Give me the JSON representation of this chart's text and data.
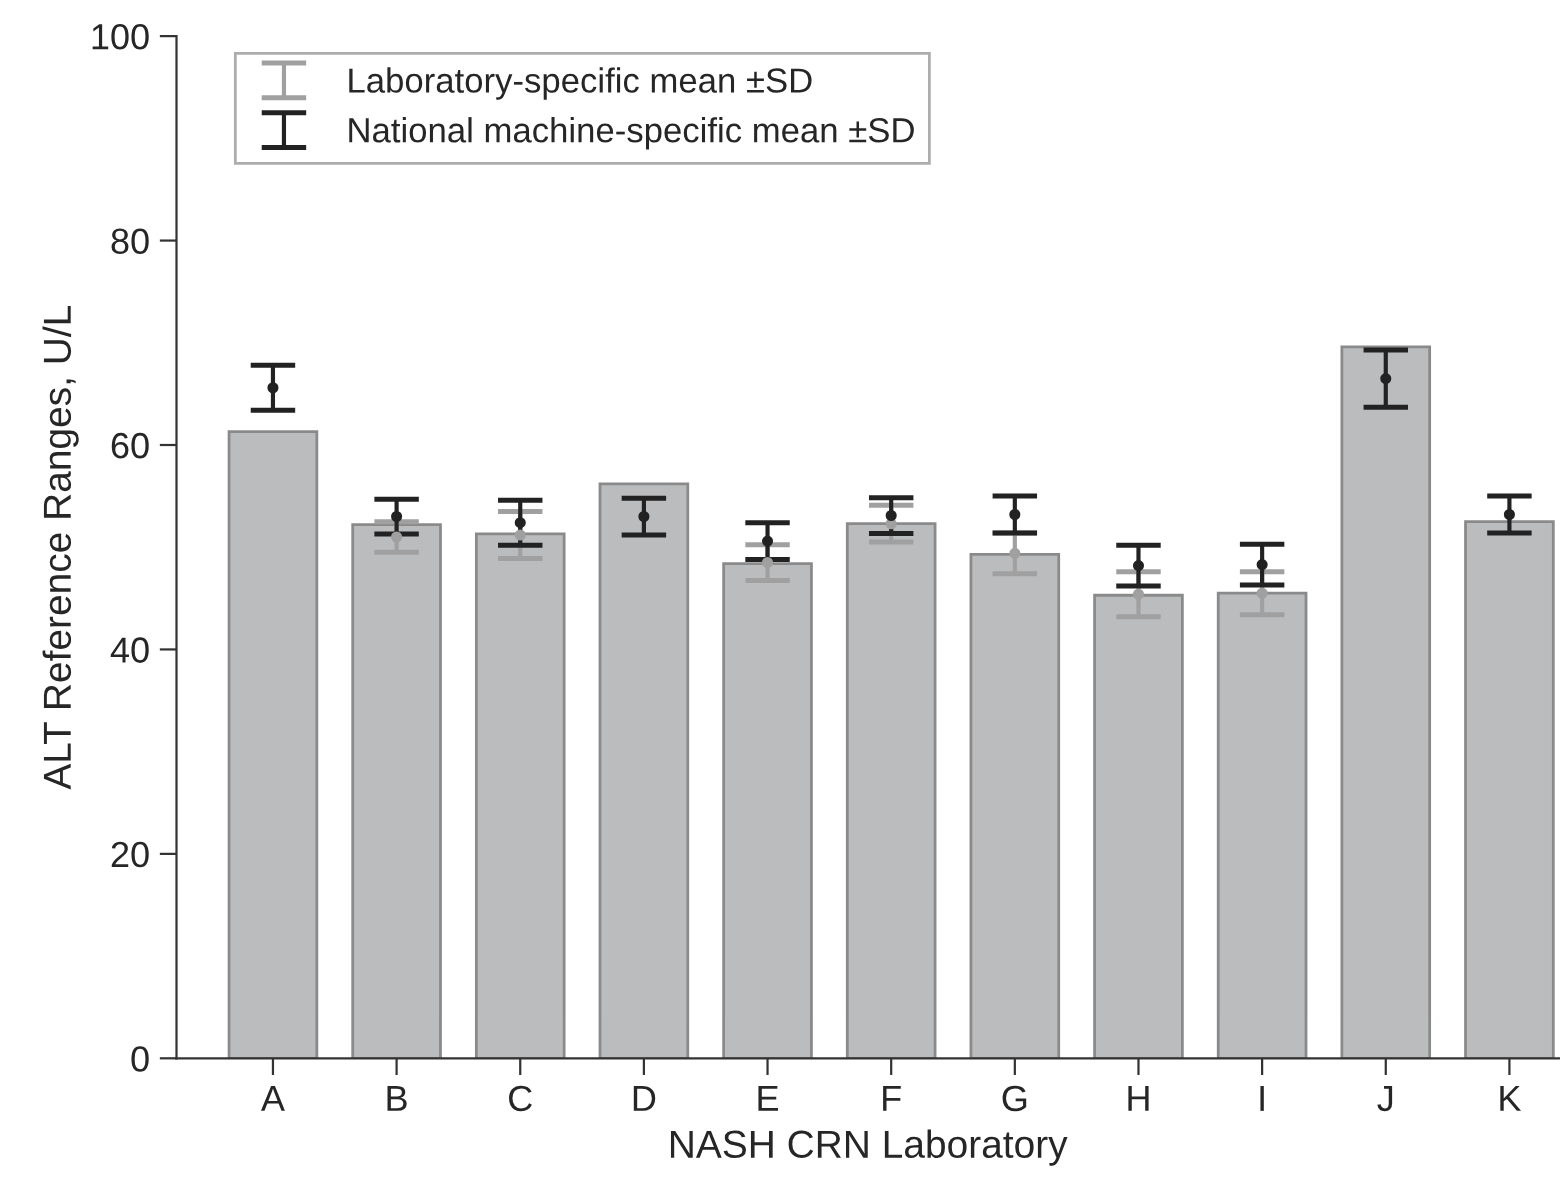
{
  "chart_data": {
    "type": "bar",
    "xlabel": "NASH CRN Laboratory",
    "ylabel": "ALT Reference Ranges, U/L",
    "categories": [
      "A",
      "B",
      "C",
      "D",
      "E",
      "F",
      "G",
      "H",
      "I",
      "J",
      "K"
    ],
    "series": [
      {
        "color": "#bbbcbe",
        "values": [
          61.3,
          52.2,
          51.3,
          56.2,
          48.4,
          52.3,
          49.3,
          45.3,
          45.5,
          69.6,
          52.5
        ]
      },
      {
        "type": "scatter",
        "name": "Laboratory-specific mean ±SD",
        "color": "#a0a0a0",
        "values": [
          null,
          51.0,
          51.2,
          null,
          48.5,
          52.3,
          49.4,
          45.4,
          45.5,
          null,
          null
        ],
        "errors": [
          null,
          1.5,
          2.3,
          null,
          1.75,
          1.8,
          2.0,
          2.2,
          2.1,
          null,
          null
        ]
      },
      {
        "type": "scatter",
        "name": "National machine-specific mean ±SD",
        "color": "#222222",
        "values": [
          65.6,
          53.0,
          52.4,
          53.0,
          50.6,
          53.1,
          53.2,
          48.2,
          48.3,
          66.5,
          53.2
        ],
        "errors": [
          2.2,
          1.7,
          2.2,
          1.8,
          1.8,
          1.75,
          1.8,
          2.0,
          2.0,
          2.8,
          1.8
        ]
      }
    ],
    "marker": "circle",
    "ylim": [
      0,
      100
    ],
    "yticks": [
      0,
      20,
      40,
      60,
      80,
      100
    ],
    "grid": false,
    "legend": "top left"
  }
}
